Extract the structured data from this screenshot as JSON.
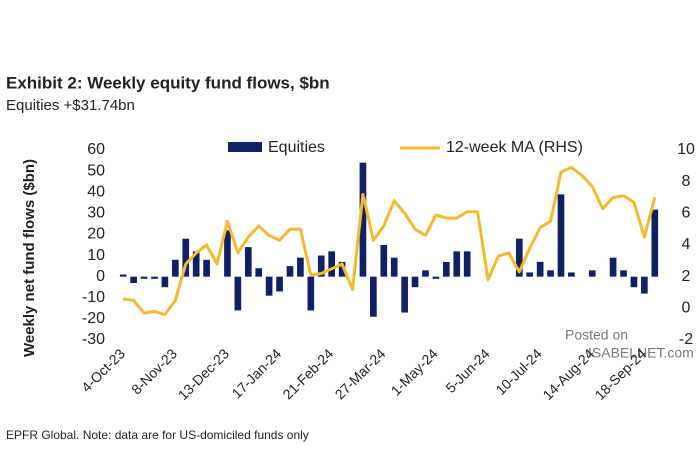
{
  "chart_data": {
    "type": "bar",
    "title": "Exhibit 2: Weekly equity fund flows, $bn",
    "subtitle": "Equities +$31.74bn",
    "y_label": "Weekly net fund flows ($bn)",
    "source": "EPFR Global. Note: data are for US-domiciled funds only",
    "watermark": [
      "Posted on",
      "ISABELNET.com"
    ],
    "categories": [
      "4-Oct-23",
      null,
      null,
      null,
      null,
      "8-Nov-23",
      null,
      null,
      null,
      null,
      "13-Dec-23",
      null,
      null,
      null,
      null,
      "17-Jan-24",
      null,
      null,
      null,
      null,
      "21-Feb-24",
      null,
      null,
      null,
      null,
      "27-Mar-24",
      null,
      null,
      null,
      null,
      "1-May-24",
      null,
      null,
      null,
      null,
      "5-Jun-24",
      null,
      null,
      null,
      null,
      "10-Jul-24",
      null,
      null,
      null,
      null,
      "14-Aug-24",
      null,
      null,
      null,
      null,
      "18-Sep-24",
      null
    ],
    "series": [
      {
        "name": "Equities",
        "type": "bar",
        "color": "#0f2064",
        "values": [
          1,
          -3,
          -1,
          -1,
          -5,
          8,
          18,
          12,
          8,
          0,
          22,
          -16,
          14,
          4,
          -9,
          -7,
          5,
          9,
          -16,
          10,
          12,
          7,
          0,
          54,
          -19,
          15,
          9,
          -17,
          -5,
          3,
          -1,
          7,
          12,
          12,
          0,
          0,
          0,
          0,
          18,
          2,
          7,
          3,
          39,
          2,
          0,
          3,
          0,
          9,
          3,
          -5,
          -8,
          31.74
        ]
      },
      {
        "name": "12-week MA (RHS)",
        "type": "line",
        "axis": "y2",
        "color": "#f5b830",
        "values": [
          0.6,
          0.5,
          -0.3,
          -0.2,
          -0.4,
          0.5,
          2.8,
          3.5,
          4,
          2.8,
          5.5,
          3.5,
          4.5,
          5.2,
          4.6,
          4.3,
          5,
          5,
          2.1,
          2.2,
          2.5,
          2.8,
          1.2,
          7.2,
          4.3,
          5.2,
          6.8,
          6,
          5,
          4.6,
          5.9,
          5.7,
          5.7,
          6.1,
          6.1,
          1.8,
          3.3,
          3.5,
          2.3,
          3.8,
          5.1,
          5.5,
          8.6,
          8.9,
          8.4,
          7.7,
          6.3,
          7,
          7.1,
          6.7,
          4.5,
          7
        ]
      }
    ],
    "ylim": [
      -30,
      60
    ],
    "yticks": [
      -30,
      -20,
      -10,
      0,
      10,
      20,
      30,
      40,
      50,
      60
    ],
    "y2lim": [
      -2,
      10
    ],
    "y2ticks": [
      -2,
      0,
      2,
      4,
      6,
      8,
      10
    ],
    "legend": "top"
  }
}
